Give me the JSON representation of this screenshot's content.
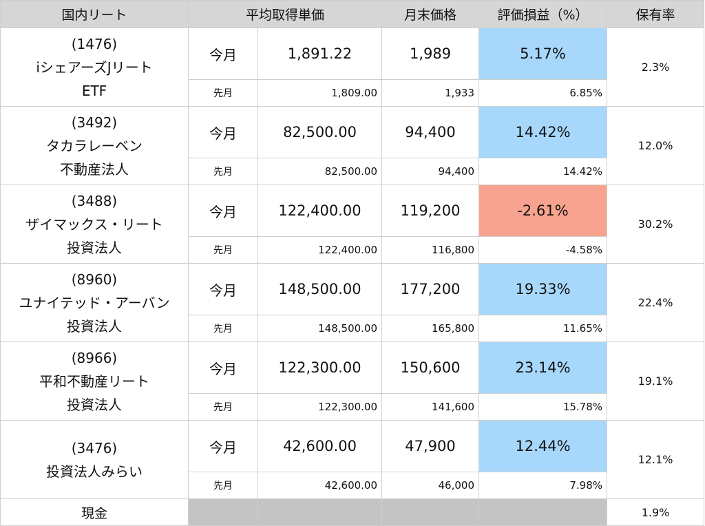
{
  "header": {
    "name": "国内リート",
    "avg_price": "平均取得単価",
    "month_end_price": "月末価格",
    "gain_loss": "評価損益（%）",
    "share": "保有率"
  },
  "labels": {
    "this_month": "今月",
    "last_month": "先月"
  },
  "rows": [
    {
      "code": "(1476)",
      "name_line1": "iシェアーズJリート",
      "name_line2": "ETF",
      "cur": {
        "avg": "1,891.22",
        "price": "1,989",
        "pct": "5.17%"
      },
      "prev": {
        "avg": "1,809.00",
        "price": "1,933",
        "pct": "6.85%"
      },
      "share": "2.3%"
    },
    {
      "code": "(3492)",
      "name_line1": "タカラレーベン",
      "name_line2": "不動産法人",
      "cur": {
        "avg": "82,500.00",
        "price": "94,400",
        "pct": "14.42%"
      },
      "prev": {
        "avg": "82,500.00",
        "price": "94,400",
        "pct": "14.42%"
      },
      "share": "12.0%"
    },
    {
      "code": "(3488)",
      "name_line1": "ザイマックス・リート",
      "name_line2": "投資法人",
      "cur": {
        "avg": "122,400.00",
        "price": "119,200",
        "pct": "-2.61%"
      },
      "prev": {
        "avg": "122,400.00",
        "price": "116,800",
        "pct": "-4.58%"
      },
      "share": "30.2%"
    },
    {
      "code": "(8960)",
      "name_line1": "ユナイテッド・アーバン",
      "name_line2": "投資法人",
      "cur": {
        "avg": "148,500.00",
        "price": "177,200",
        "pct": "19.33%"
      },
      "prev": {
        "avg": "148,500.00",
        "price": "165,800",
        "pct": "11.65%"
      },
      "share": "22.4%"
    },
    {
      "code": "(8966)",
      "name_line1": "平和不動産リート",
      "name_line2": "投資法人",
      "cur": {
        "avg": "122,300.00",
        "price": "150,600",
        "pct": "23.14%"
      },
      "prev": {
        "avg": "122,300.00",
        "price": "141,600",
        "pct": "15.78%"
      },
      "share": "19.1%"
    },
    {
      "code": "(3476)",
      "name_line1": "投資法人みらい",
      "name_line2": "",
      "cur": {
        "avg": "42,600.00",
        "price": "47,900",
        "pct": "12.44%"
      },
      "prev": {
        "avg": "42,600.00",
        "price": "46,000",
        "pct": "7.98%"
      },
      "share": "12.1%"
    }
  ],
  "cash": {
    "label": "現金",
    "share": "1.9%"
  },
  "colors": {
    "positive": "#a7d8fb",
    "negative": "#f8a38f",
    "header": "#d6d6d6",
    "cash_fill": "#c4c4c4"
  }
}
